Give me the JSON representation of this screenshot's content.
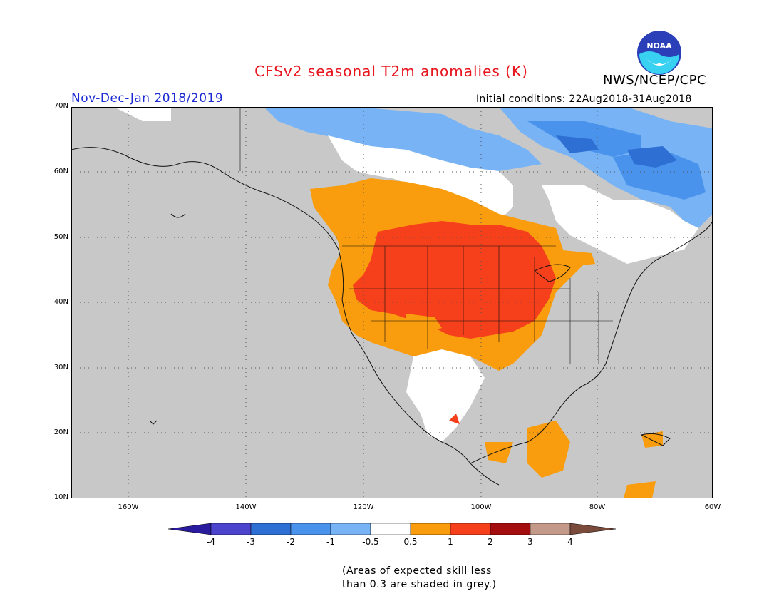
{
  "header": {
    "title": "CFSv2 seasonal T2m anomalies (K)",
    "period": "Nov-Dec-Jan 2018/2019",
    "initial_conditions": "Initial conditions: 22Aug2018-31Aug2018",
    "agency": "NWS/NCEP/CPC",
    "logo_text": "NOAA"
  },
  "colors": {
    "title": "#e8141e",
    "period": "#1d2bd3",
    "land_grey": "#c8c8c8",
    "ocean_grey": "#c8c8c8",
    "dotted_grid": "#555555"
  },
  "map": {
    "lat_ticks": [
      "70N",
      "60N",
      "50N",
      "40N",
      "30N",
      "20N",
      "10N"
    ],
    "lon_ticks": [
      "160W",
      "140W",
      "120W",
      "100W",
      "80W",
      "60W"
    ]
  },
  "legend": {
    "labels": [
      "-4",
      "-3",
      "-2",
      "-1",
      "-0.5",
      "0.5",
      "1",
      "2",
      "3",
      "4"
    ],
    "colors": [
      "#2a1a9e",
      "#4c44cd",
      "#2e6fd4",
      "#4a93ec",
      "#78b4f5",
      "#ffffff",
      "#f99c0e",
      "#f5401b",
      "#a50e0e",
      "#c3998a",
      "#7a4a3a"
    ]
  },
  "notes": {
    "line1": "(Areas of expected skill less",
    "line2": "than 0.3 are shaded in grey.)"
  }
}
